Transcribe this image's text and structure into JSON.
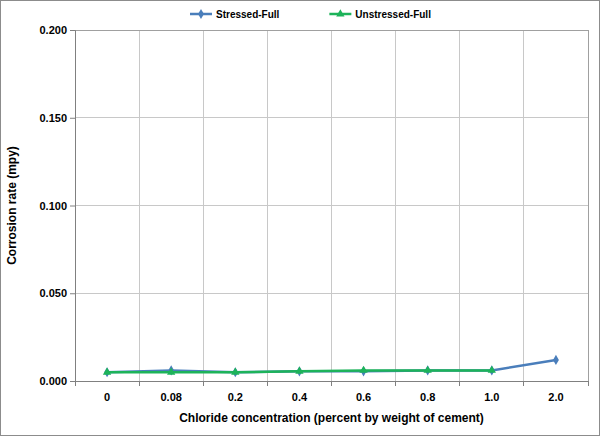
{
  "chart_data": {
    "type": "line",
    "x_label": "Chloride concentration (percent by weight of cement)",
    "y_label": "Corrosion rate (mpy)",
    "categories": [
      "0",
      "0.08",
      "0.2",
      "0.4",
      "0.6",
      "0.8",
      "1.0",
      "2.0"
    ],
    "series": [
      {
        "name": "Stressed-Full",
        "color": "#4a7ebb",
        "marker": "diamond",
        "values": [
          0.005,
          0.006,
          0.005,
          0.0055,
          0.0055,
          0.006,
          0.006,
          0.012
        ]
      },
      {
        "name": "Unstressed-Full",
        "color": "#1db35a",
        "marker": "triangle",
        "values": [
          0.005,
          0.005,
          0.005,
          0.0055,
          0.006,
          0.006,
          0.006,
          null
        ]
      }
    ],
    "ylim": [
      0,
      0.2
    ],
    "yticks": [
      {
        "value": 0,
        "label": "0.000"
      },
      {
        "value": 0.05,
        "label": "0.050"
      },
      {
        "value": 0.1,
        "label": "0.100"
      },
      {
        "value": 0.15,
        "label": "0.150"
      },
      {
        "value": 0.2,
        "label": "0.200"
      }
    ],
    "grid": true,
    "legend": "top"
  }
}
